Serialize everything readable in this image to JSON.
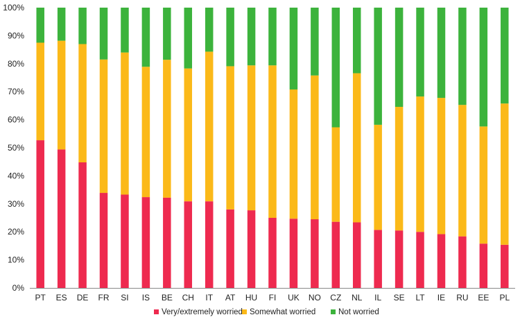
{
  "chart_data": {
    "type": "bar",
    "stacked": true,
    "normalized": true,
    "categories": [
      "PT",
      "ES",
      "DE",
      "FR",
      "SI",
      "IS",
      "BE",
      "CH",
      "IT",
      "AT",
      "HU",
      "FI",
      "UK",
      "NO",
      "CZ",
      "NL",
      "IL",
      "SE",
      "LT",
      "IE",
      "RU",
      "EE",
      "PL"
    ],
    "series": [
      {
        "name": "Very/extremely worried",
        "color": "#ee2a4f",
        "values": [
          52.7,
          49.4,
          44.8,
          33.9,
          33.3,
          32.4,
          32.2,
          30.9,
          30.9,
          28.0,
          27.7,
          25.0,
          24.7,
          24.5,
          23.6,
          23.4,
          20.7,
          20.5,
          20.0,
          19.2,
          18.4,
          15.8,
          15.4
        ]
      },
      {
        "name": "Somewhat worried",
        "color": "#fbb919",
        "values": [
          34.8,
          38.8,
          42.2,
          47.6,
          50.7,
          46.5,
          49.2,
          47.4,
          53.4,
          51.1,
          51.7,
          54.4,
          46.1,
          51.3,
          33.7,
          53.2,
          37.5,
          44.1,
          48.3,
          48.6,
          46.9,
          41.8,
          50.4
        ]
      },
      {
        "name": "Not worried",
        "color": "#3cb33c",
        "values": [
          12.5,
          11.8,
          13.0,
          18.5,
          16.0,
          21.1,
          18.6,
          21.7,
          15.7,
          20.9,
          20.6,
          20.6,
          29.2,
          24.2,
          42.7,
          23.4,
          41.8,
          35.4,
          31.7,
          32.2,
          34.7,
          42.4,
          34.2
        ]
      }
    ],
    "yticks": [
      "0%",
      "10%",
      "20%",
      "30%",
      "40%",
      "50%",
      "60%",
      "70%",
      "80%",
      "90%",
      "100%"
    ],
    "ylim": [
      0,
      100
    ],
    "grid": false,
    "legend_position": "bottom-center",
    "title": "",
    "xlabel": "",
    "ylabel": ""
  }
}
